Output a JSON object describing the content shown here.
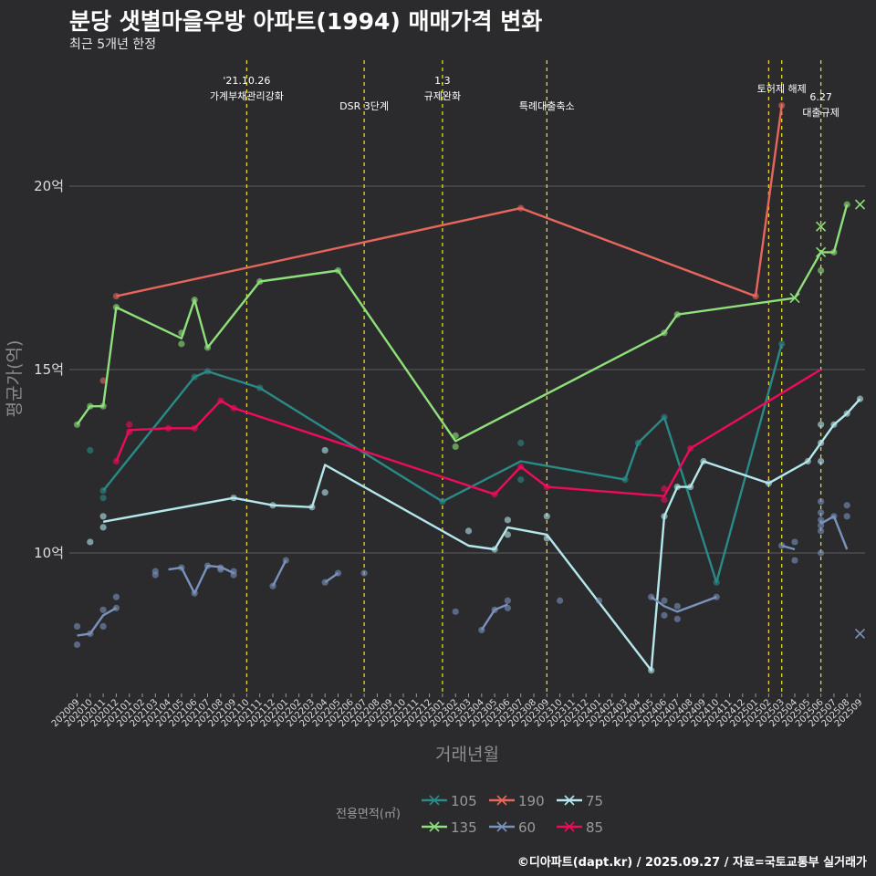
{
  "header": {
    "title": "분당 샛별마을우방 아파트(1994) 매매가격 변화",
    "subtitle": "최근 5개년 한정",
    "caption": "©디아파트(dapt.kr) / 2025.09.27 / 자료=국토교통부 실거래가"
  },
  "chart_data": {
    "type": "line",
    "xlabel": "거래년월",
    "ylabel": "평균가(억)",
    "ylim": [
      6.0,
      23.6
    ],
    "yticks": [
      10,
      15,
      20
    ],
    "ytick_labels": [
      "10억",
      "15억",
      "20억"
    ],
    "grid": true,
    "categories": [
      "202009",
      "202010",
      "202011",
      "202012",
      "202101",
      "202102",
      "202103",
      "202104",
      "202105",
      "202106",
      "202107",
      "202108",
      "202109",
      "202110",
      "202111",
      "202112",
      "202201",
      "202202",
      "202203",
      "202204",
      "202205",
      "202206",
      "202207",
      "202208",
      "202209",
      "202210",
      "202211",
      "202212",
      "202301",
      "202302",
      "202303",
      "202304",
      "202305",
      "202306",
      "202307",
      "202308",
      "202309",
      "202310",
      "202311",
      "202312",
      "202401",
      "202402",
      "202403",
      "202404",
      "202405",
      "202406",
      "202407",
      "202408",
      "202409",
      "202410",
      "202411",
      "202412",
      "202501",
      "202502",
      "202503",
      "202504",
      "202505",
      "202506",
      "202507",
      "202508",
      "202509"
    ],
    "annotations": [
      {
        "x": "202110",
        "lines": [
          "'21.10.26",
          "가계부채관리강화"
        ],
        "level": "high"
      },
      {
        "x": "202207",
        "lines": [
          "DSR 3단계"
        ],
        "level": "low"
      },
      {
        "x": "202301",
        "lines": [
          "1.3",
          "규제완화"
        ],
        "level": "high"
      },
      {
        "x": "202309",
        "lines": [
          "특례대출축소"
        ],
        "level": "low"
      },
      {
        "x": "202502",
        "lines": [],
        "level": "none"
      },
      {
        "x": "202503",
        "lines": [
          "토허제 해제"
        ],
        "level": "top"
      },
      {
        "x": "202506",
        "lines": [
          "6.27",
          "대출규제"
        ],
        "level": "mid"
      }
    ],
    "legend": {
      "title": "전용면적(㎡)",
      "position": "bottom",
      "entries": [
        "105",
        "190",
        "75",
        "135",
        "60",
        "85"
      ]
    },
    "series": [
      {
        "name": "105",
        "color": "#2a8a87",
        "line": [
          [
            "202011",
            11.7
          ],
          [
            "202106",
            14.8
          ],
          [
            "202107",
            14.95
          ],
          [
            "202111",
            14.5
          ],
          [
            "202301",
            11.4
          ],
          [
            "202307",
            12.5
          ],
          [
            "202403",
            12.0
          ],
          [
            "202404",
            13.0
          ],
          [
            "202406",
            13.7
          ],
          [
            "202410",
            9.2
          ],
          [
            "202503",
            15.7
          ]
        ],
        "points": [
          [
            "202010",
            12.8
          ],
          [
            "202011",
            11.5
          ],
          [
            "202011",
            11.7
          ],
          [
            "202106",
            14.8
          ],
          [
            "202107",
            14.95
          ],
          [
            "202111",
            14.5
          ],
          [
            "202301",
            11.4
          ],
          [
            "202307",
            13.0
          ],
          [
            "202307",
            12.0
          ],
          [
            "202403",
            12.0
          ],
          [
            "202404",
            13.0
          ],
          [
            "202406",
            13.7
          ],
          [
            "202410",
            9.2
          ],
          [
            "202503",
            15.7
          ]
        ],
        "crosses": []
      },
      {
        "name": "190",
        "color": "#e8665c",
        "line": [
          [
            "202012",
            17.0
          ],
          [
            "202307",
            19.4
          ],
          [
            "202501",
            17.0
          ],
          [
            "202503",
            22.2
          ]
        ],
        "points": [
          [
            "202011",
            14.7
          ],
          [
            "202012",
            17.0
          ],
          [
            "202307",
            19.4
          ],
          [
            "202501",
            17.0
          ],
          [
            "202503",
            22.2
          ]
        ],
        "crosses": []
      },
      {
        "name": "75",
        "color": "#b4e8ec",
        "line": [
          [
            "202011",
            10.85
          ],
          [
            "202109",
            11.5
          ],
          [
            "202112",
            11.3
          ],
          [
            "202203",
            11.25
          ],
          [
            "202204",
            12.4
          ],
          [
            "202303",
            10.2
          ],
          [
            "202305",
            10.1
          ],
          [
            "202306",
            10.7
          ],
          [
            "202309",
            10.5
          ],
          [
            "202405",
            6.8
          ],
          [
            "202406",
            11.0
          ],
          [
            "202407",
            11.8
          ],
          [
            "202408",
            11.8
          ],
          [
            "202409",
            12.5
          ],
          [
            "202502",
            11.9
          ],
          [
            "202505",
            12.5
          ],
          [
            "202506",
            13.0
          ],
          [
            "202507",
            13.5
          ],
          [
            "202508",
            13.8
          ],
          [
            "202509",
            14.2
          ]
        ],
        "points": [
          [
            "202010",
            10.3
          ],
          [
            "202011",
            11.0
          ],
          [
            "202011",
            10.7
          ],
          [
            "202109",
            11.5
          ],
          [
            "202112",
            11.3
          ],
          [
            "202203",
            11.25
          ],
          [
            "202204",
            12.8
          ],
          [
            "202204",
            11.65
          ],
          [
            "202303",
            10.6
          ],
          [
            "202305",
            10.1
          ],
          [
            "202306",
            10.9
          ],
          [
            "202306",
            10.5
          ],
          [
            "202309",
            11.0
          ],
          [
            "202309",
            10.4
          ],
          [
            "202405",
            6.8
          ],
          [
            "202406",
            11.0
          ],
          [
            "202407",
            11.8
          ],
          [
            "202408",
            11.8
          ],
          [
            "202409",
            12.5
          ],
          [
            "202502",
            11.9
          ],
          [
            "202505",
            12.5
          ],
          [
            "202506",
            13.0
          ],
          [
            "202506",
            13.5
          ],
          [
            "202506",
            12.5
          ],
          [
            "202507",
            13.5
          ],
          [
            "202508",
            13.8
          ],
          [
            "202509",
            14.2
          ]
        ],
        "crosses": []
      },
      {
        "name": "135",
        "color": "#8ee07a",
        "line": [
          [
            "202009",
            13.5
          ],
          [
            "202010",
            14.0
          ],
          [
            "202011",
            14.0
          ],
          [
            "202012",
            16.7
          ],
          [
            "202105",
            15.85
          ],
          [
            "202106",
            16.9
          ],
          [
            "202107",
            15.6
          ],
          [
            "202111",
            17.4
          ],
          [
            "202205",
            17.7
          ],
          [
            "202302",
            13.05
          ],
          [
            "202406",
            16.0
          ],
          [
            "202407",
            16.5
          ],
          [
            "202504",
            16.95
          ],
          [
            "202506",
            18.2
          ],
          [
            "202507",
            18.2
          ],
          [
            "202508",
            19.5
          ]
        ],
        "points": [
          [
            "202009",
            13.5
          ],
          [
            "202010",
            14.0
          ],
          [
            "202011",
            14.0
          ],
          [
            "202012",
            16.7
          ],
          [
            "202105",
            15.7
          ],
          [
            "202105",
            16.0
          ],
          [
            "202106",
            16.9
          ],
          [
            "202107",
            15.6
          ],
          [
            "202111",
            17.4
          ],
          [
            "202205",
            17.7
          ],
          [
            "202302",
            13.2
          ],
          [
            "202302",
            12.9
          ],
          [
            "202406",
            16.0
          ],
          [
            "202407",
            16.5
          ],
          [
            "202506",
            17.7
          ],
          [
            "202507",
            18.2
          ],
          [
            "202508",
            19.5
          ]
        ],
        "crosses": [
          [
            "202504",
            16.95
          ],
          [
            "202506",
            18.9
          ],
          [
            "202506",
            18.2
          ],
          [
            "202509",
            19.5
          ]
        ]
      },
      {
        "name": "60",
        "color": "#7a93bd",
        "segments": [
          [
            [
              "202009",
              7.75
            ],
            [
              "202010",
              7.8
            ],
            [
              "202011",
              8.3
            ],
            [
              "202012",
              8.5
            ]
          ],
          [
            [
              "202104",
              9.55
            ],
            [
              "202105",
              9.6
            ],
            [
              "202106",
              8.9
            ],
            [
              "202107",
              9.65
            ],
            [
              "202108",
              9.62
            ],
            [
              "202109",
              9.45
            ]
          ],
          [
            [
              "202112",
              9.1
            ],
            [
              "202201",
              9.8
            ]
          ],
          [
            [
              "202204",
              9.2
            ],
            [
              "202205",
              9.45
            ]
          ],
          [
            [
              "202304",
              7.9
            ],
            [
              "202305",
              8.45
            ],
            [
              "202306",
              8.6
            ]
          ],
          [
            [
              "202405",
              8.8
            ],
            [
              "202406",
              8.55
            ],
            [
              "202407",
              8.4
            ],
            [
              "202410",
              8.8
            ]
          ],
          [
            [
              "202503",
              10.2
            ],
            [
              "202504",
              10.1
            ]
          ],
          [
            [
              "202506",
              10.8
            ],
            [
              "202507",
              11.0
            ],
            [
              "202508",
              10.1
            ]
          ]
        ],
        "points": [
          [
            "202009",
            7.5
          ],
          [
            "202009",
            8.0
          ],
          [
            "202010",
            7.8
          ],
          [
            "202011",
            8.45
          ],
          [
            "202011",
            8.0
          ],
          [
            "202012",
            8.8
          ],
          [
            "202012",
            8.5
          ],
          [
            "202103",
            9.5
          ],
          [
            "202103",
            9.4
          ],
          [
            "202105",
            9.6
          ],
          [
            "202106",
            8.9
          ],
          [
            "202107",
            9.65
          ],
          [
            "202108",
            9.6
          ],
          [
            "202108",
            9.55
          ],
          [
            "202109",
            9.4
          ],
          [
            "202109",
            9.5
          ],
          [
            "202112",
            9.1
          ],
          [
            "202201",
            9.8
          ],
          [
            "202204",
            9.2
          ],
          [
            "202205",
            9.45
          ],
          [
            "202207",
            9.45
          ],
          [
            "202302",
            8.4
          ],
          [
            "202304",
            7.9
          ],
          [
            "202305",
            8.45
          ],
          [
            "202306",
            8.7
          ],
          [
            "202306",
            8.5
          ],
          [
            "202310",
            8.7
          ],
          [
            "202401",
            8.7
          ],
          [
            "202405",
            8.8
          ],
          [
            "202406",
            8.3
          ],
          [
            "202406",
            8.7
          ],
          [
            "202407",
            8.2
          ],
          [
            "202407",
            8.55
          ],
          [
            "202410",
            8.8
          ],
          [
            "202503",
            10.2
          ],
          [
            "202504",
            10.3
          ],
          [
            "202504",
            9.8
          ],
          [
            "202506",
            11.4
          ],
          [
            "202506",
            11.1
          ],
          [
            "202506",
            10.9
          ],
          [
            "202506",
            10.75
          ],
          [
            "202506",
            10.6
          ],
          [
            "202506",
            10.0
          ],
          [
            "202507",
            11.0
          ],
          [
            "202508",
            11.3
          ],
          [
            "202508",
            11.0
          ]
        ],
        "crosses": [
          [
            "202509",
            7.8
          ]
        ]
      },
      {
        "name": "85",
        "color": "#ee0b5c",
        "line": [
          [
            "202012",
            12.5
          ],
          [
            "202101",
            13.35
          ],
          [
            "202104",
            13.4
          ],
          [
            "202106",
            13.4
          ],
          [
            "202108",
            14.15
          ],
          [
            "202109",
            13.95
          ],
          [
            "202305",
            11.6
          ],
          [
            "202307",
            12.35
          ],
          [
            "202309",
            11.8
          ],
          [
            "202406",
            11.55
          ],
          [
            "202408",
            12.85
          ],
          [
            "202506",
            15.0
          ]
        ],
        "points": [
          [
            "202012",
            12.5
          ],
          [
            "202101",
            13.5
          ],
          [
            "202101",
            13.3
          ],
          [
            "202104",
            13.4
          ],
          [
            "202106",
            13.4
          ],
          [
            "202108",
            14.15
          ],
          [
            "202109",
            13.95
          ],
          [
            "202305",
            11.6
          ],
          [
            "202307",
            12.35
          ],
          [
            "202309",
            11.8
          ],
          [
            "202406",
            11.75
          ],
          [
            "202406",
            11.45
          ],
          [
            "202408",
            12.85
          ]
        ],
        "crosses": []
      }
    ]
  }
}
